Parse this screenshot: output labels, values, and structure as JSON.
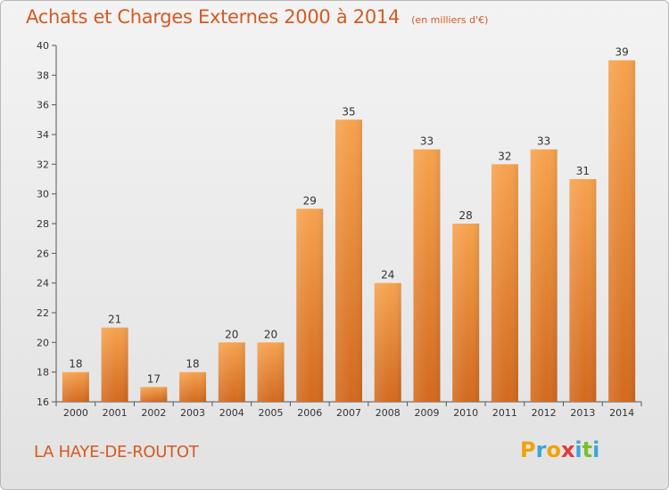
{
  "header": {
    "title": "Achats et Charges Externes 2000 à 2014",
    "subtitle": "(en milliers d'€)"
  },
  "footer": {
    "commune": "LA HAYE-DE-ROUTOT",
    "logo": {
      "letters": [
        "P",
        "r",
        "o",
        "x",
        "i",
        "t",
        "i"
      ],
      "colors": [
        "#f0a30a",
        "#3aa6d8",
        "#f0a30a",
        "#e23b3b",
        "#3aa6d8",
        "#7cbf2e",
        "#3aa6d8"
      ]
    }
  },
  "chart_data": {
    "type": "bar",
    "title": "Achats et Charges Externes 2000 à 2014",
    "subtitle": "(en milliers d'€)",
    "categories": [
      "2000",
      "2001",
      "2002",
      "2003",
      "2004",
      "2005",
      "2006",
      "2007",
      "2008",
      "2009",
      "2010",
      "2011",
      "2012",
      "2013",
      "2014"
    ],
    "values": [
      18,
      21,
      17,
      18,
      20,
      20,
      29,
      35,
      24,
      33,
      28,
      32,
      33,
      31,
      39
    ],
    "ylim": [
      16,
      40
    ],
    "yticks": [
      16,
      18,
      20,
      22,
      24,
      26,
      28,
      30,
      32,
      34,
      36,
      38,
      40
    ],
    "grid": false,
    "data_labels": true,
    "bar_color_top": "#f6a24e",
    "bar_color_bottom": "#d2691e"
  }
}
